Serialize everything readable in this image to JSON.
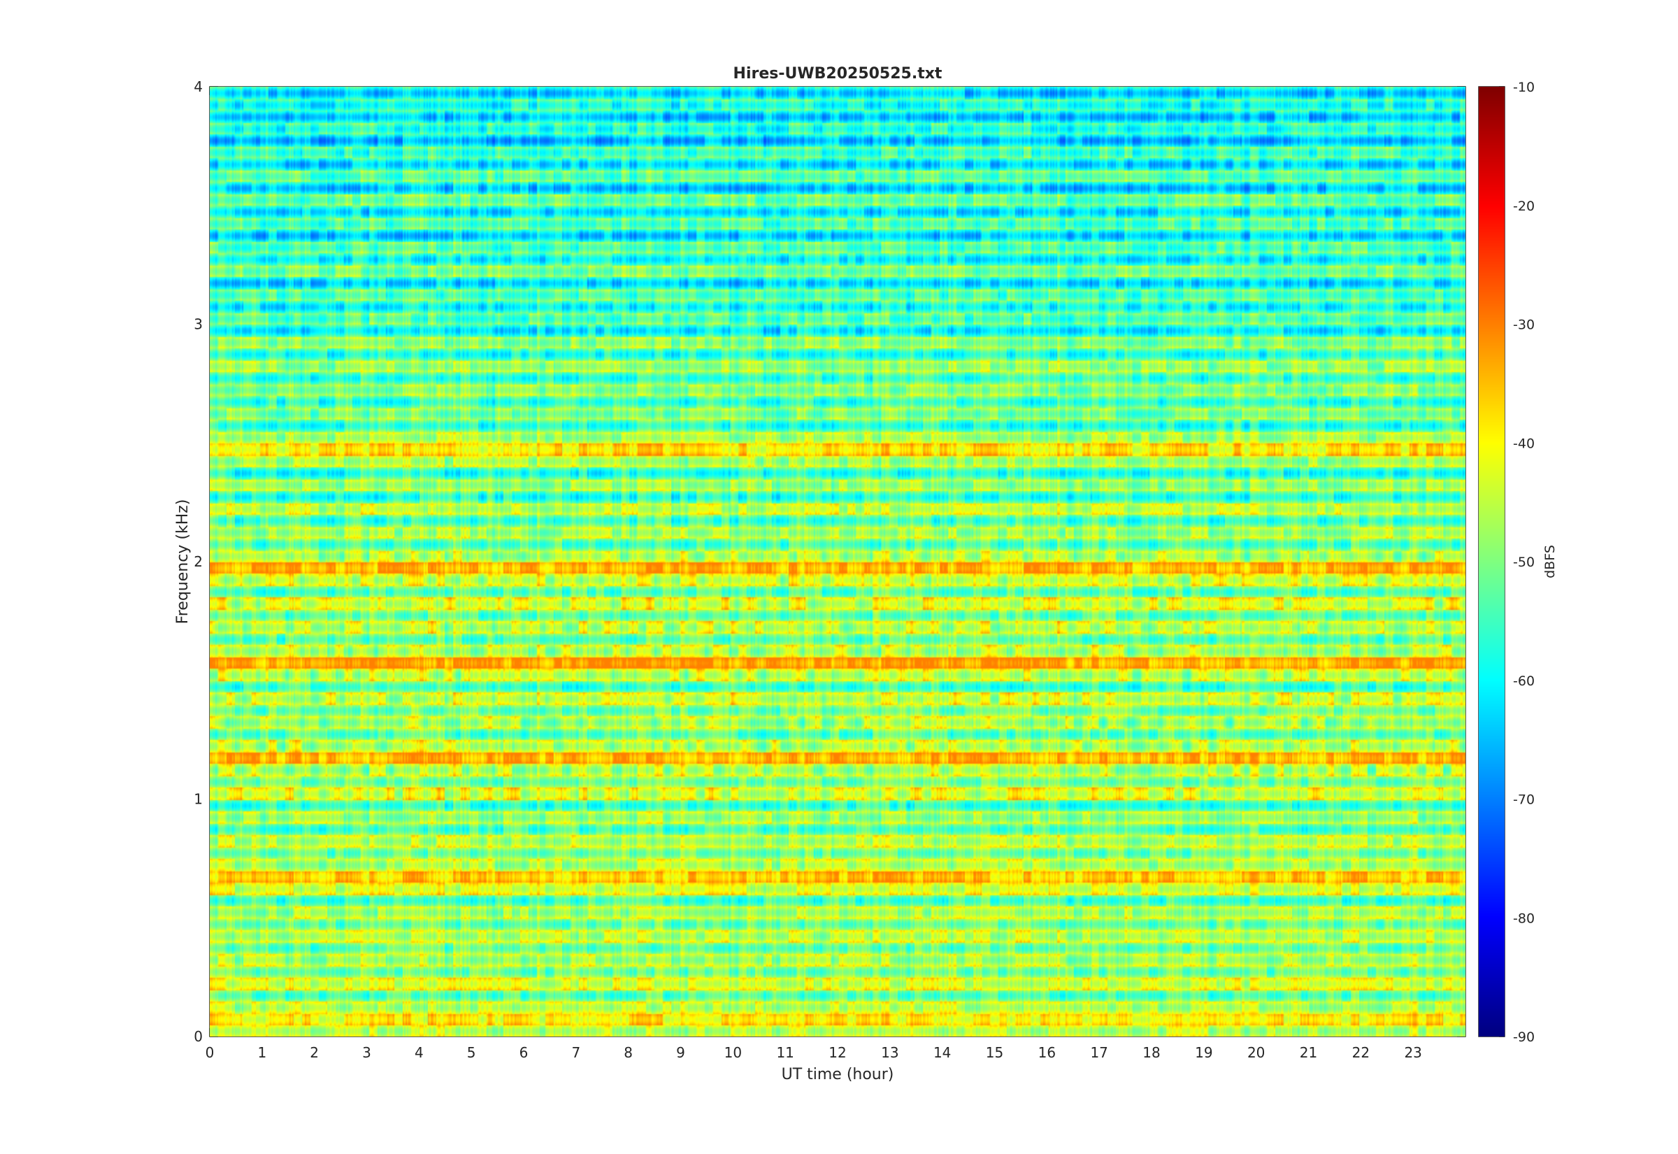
{
  "chart_data": {
    "type": "heatmap",
    "title": "Hires-UWB20250525.txt",
    "xlabel": "UT time (hour)",
    "ylabel": "Frequency (kHz)",
    "colorbar_label": "dBFS",
    "xlim": [
      0,
      24
    ],
    "ylim": [
      0,
      4
    ],
    "clim": [
      -90,
      -10
    ],
    "colormap": "jet",
    "x_ticks": [
      0,
      1,
      2,
      3,
      4,
      5,
      6,
      7,
      8,
      9,
      10,
      11,
      12,
      13,
      14,
      15,
      16,
      17,
      18,
      19,
      20,
      21,
      22,
      23
    ],
    "y_ticks": [
      0,
      1,
      2,
      3,
      4
    ],
    "colorbar_ticks": [
      -90,
      -80,
      -70,
      -60,
      -50,
      -40,
      -30,
      -20,
      -10
    ],
    "grid": false,
    "value_range_observed_dbfs": [
      -75,
      -30
    ],
    "noted_features": [
      {
        "label": "strong band",
        "freq_khz": 0.05,
        "level_dbfs": -44
      },
      {
        "label": "strong band",
        "freq_khz": 0.65,
        "level_dbfs": -40
      },
      {
        "label": "strong band",
        "freq_khz": 1.15,
        "level_dbfs": -38
      },
      {
        "label": "strong band",
        "freq_khz": 1.55,
        "level_dbfs": -37
      },
      {
        "label": "strong band",
        "freq_khz": 1.95,
        "level_dbfs": -38
      },
      {
        "label": "strong band",
        "freq_khz": 2.45,
        "level_dbfs": -43
      }
    ]
  }
}
